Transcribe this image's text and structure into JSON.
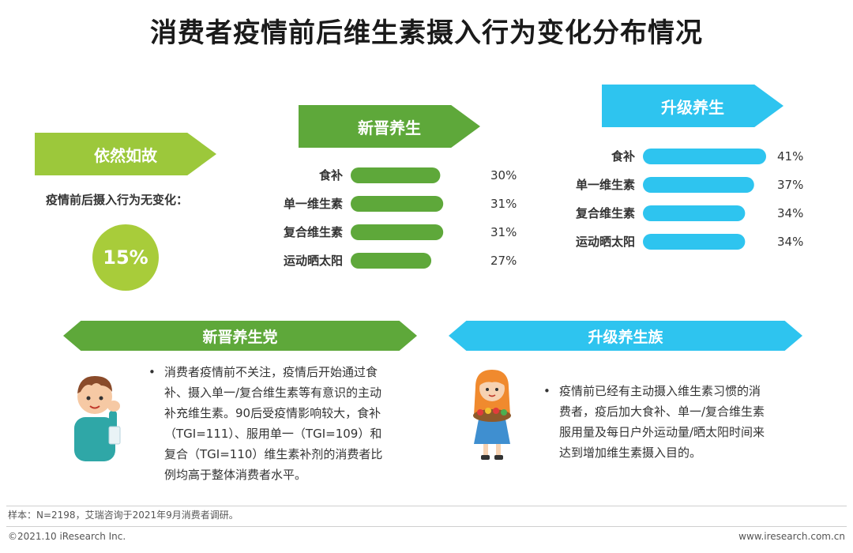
{
  "title": "消费者疫情前后维生素摄入行为变化分布情况",
  "sections": {
    "unchanged": {
      "label": "依然如故",
      "subtitle": "疫情前后摄入行为无变化：",
      "value": "15%",
      "color": "#9cc83b"
    },
    "new": {
      "label": "新晋养生",
      "color": "#5ea83a"
    },
    "upgrade": {
      "label": "升级养生",
      "color": "#2ec4ef"
    }
  },
  "chart_data": [
    {
      "type": "bar",
      "orientation": "horizontal",
      "title": "新晋养生",
      "categories": [
        "食补",
        "单一维生素",
        "复合维生素",
        "运动晒太阳"
      ],
      "values": [
        30,
        31,
        31,
        27
      ],
      "value_labels": [
        "30%",
        "31%",
        "31%",
        "27%"
      ],
      "unit": "%",
      "xlim": [
        0,
        41
      ],
      "color": "#5ea83a"
    },
    {
      "type": "bar",
      "orientation": "horizontal",
      "title": "升级养生",
      "categories": [
        "食补",
        "单一维生素",
        "复合维生素",
        "运动晒太阳"
      ],
      "values": [
        41,
        37,
        34,
        34
      ],
      "value_labels": [
        "41%",
        "37%",
        "34%",
        "34%"
      ],
      "unit": "%",
      "xlim": [
        0,
        41
      ],
      "color": "#2ec4ef"
    }
  ],
  "groups": {
    "new_party": {
      "label": "新晋养生党",
      "bullet": "•",
      "lines": [
        "消费者疫情前不关注，疫情后开始通过食",
        "补、摄入单一/复合维生素等有意识的主动",
        "补充维生素。90后受疫情影响较大，食补",
        "（TGI=111）、服用单一（TGI=109）和",
        "复合（TGI=110）维生素补剂的消费者比",
        "例均高于整体消费者水平。"
      ]
    },
    "upgrade_tribe": {
      "label": "升级养生族",
      "bullet": "•",
      "lines": [
        "疫情前已经有主动摄入维生素习惯的消",
        "费者，疫后加大食补、单一/复合维生素",
        "服用量及每日户外运动量/晒太阳时间来",
        "达到增加维生素摄入目的。"
      ]
    }
  },
  "footer": {
    "sample": "样本：N=2198，艾瑞咨询于2021年9月消费者调研。",
    "copyright": "©2021.10 iResearch Inc.",
    "website": "www.iresearch.com.cn"
  }
}
